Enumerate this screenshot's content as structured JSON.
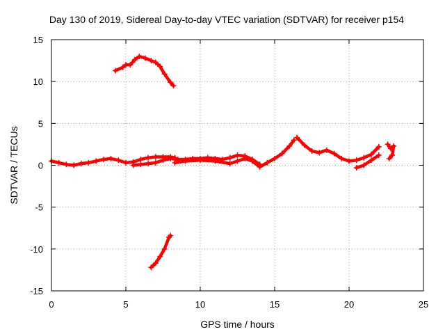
{
  "chart_data": {
    "type": "scatter",
    "title": "Day 130 of 2019, Sidereal Day-to-day VTEC variation (SDTVAR) for receiver p154",
    "xlabel": "GPS time / hours",
    "ylabel": "SDTVAR / TECUs",
    "xlim": [
      0,
      25
    ],
    "ylim": [
      -15,
      15
    ],
    "xticks": [
      0,
      5,
      10,
      15,
      20,
      25
    ],
    "yticks": [
      -15,
      -10,
      -5,
      0,
      5,
      10,
      15
    ],
    "grid": true,
    "marker_color": "#ff0000",
    "series": [
      {
        "name": "arc-main-1",
        "points": [
          [
            0.0,
            0.5
          ],
          [
            0.5,
            0.3
          ],
          [
            1.0,
            0.1
          ],
          [
            1.5,
            0.0
          ],
          [
            2.0,
            0.2
          ],
          [
            2.5,
            0.3
          ],
          [
            3.0,
            0.5
          ],
          [
            3.5,
            0.7
          ],
          [
            4.0,
            0.8
          ],
          [
            4.5,
            0.6
          ],
          [
            5.0,
            0.3
          ],
          [
            5.5,
            0.4
          ],
          [
            6.0,
            0.7
          ],
          [
            6.5,
            0.9
          ],
          [
            7.0,
            1.0
          ],
          [
            7.5,
            1.0
          ],
          [
            8.0,
            1.0
          ],
          [
            8.3,
            0.9
          ]
        ]
      },
      {
        "name": "arc-main-2",
        "points": [
          [
            5.5,
            0.0
          ],
          [
            6.0,
            0.1
          ],
          [
            6.5,
            0.2
          ],
          [
            7.0,
            0.3
          ],
          [
            7.5,
            0.6
          ],
          [
            8.0,
            0.8
          ],
          [
            8.5,
            0.7
          ],
          [
            9.0,
            0.7
          ],
          [
            9.5,
            0.8
          ],
          [
            10.0,
            0.8
          ],
          [
            10.5,
            0.9
          ],
          [
            11.0,
            0.8
          ],
          [
            11.5,
            0.7
          ],
          [
            12.0,
            0.9
          ],
          [
            12.5,
            1.2
          ],
          [
            13.0,
            1.1
          ],
          [
            13.5,
            0.7
          ],
          [
            14.0,
            0.1
          ]
        ]
      },
      {
        "name": "arc-main-3",
        "points": [
          [
            8.3,
            0.3
          ],
          [
            9.0,
            0.5
          ],
          [
            10.0,
            0.6
          ],
          [
            11.0,
            0.5
          ],
          [
            12.0,
            0.2
          ],
          [
            12.5,
            0.5
          ],
          [
            13.0,
            0.8
          ],
          [
            13.5,
            0.5
          ],
          [
            14.0,
            -0.2
          ],
          [
            14.5,
            0.3
          ],
          [
            15.0,
            0.8
          ],
          [
            15.5,
            1.4
          ],
          [
            16.0,
            2.3
          ],
          [
            16.3,
            3.0
          ]
        ]
      },
      {
        "name": "arc-main-4",
        "points": [
          [
            16.5,
            3.3
          ],
          [
            17.0,
            2.4
          ],
          [
            17.5,
            1.7
          ],
          [
            18.0,
            1.5
          ],
          [
            18.5,
            1.8
          ],
          [
            19.0,
            1.4
          ],
          [
            19.5,
            0.8
          ],
          [
            20.0,
            0.5
          ],
          [
            20.5,
            0.6
          ],
          [
            21.0,
            0.9
          ],
          [
            21.5,
            1.3
          ],
          [
            22.0,
            2.2
          ]
        ]
      },
      {
        "name": "arc-main-5",
        "points": [
          [
            20.5,
            -0.3
          ],
          [
            21.0,
            0.0
          ],
          [
            21.5,
            0.6
          ],
          [
            22.0,
            1.2
          ]
        ]
      },
      {
        "name": "arc-main-6",
        "points": [
          [
            22.6,
            2.5
          ],
          [
            22.8,
            2.0
          ],
          [
            23.0,
            2.3
          ],
          [
            22.9,
            1.2
          ],
          [
            22.7,
            0.8
          ]
        ]
      },
      {
        "name": "arc-high",
        "points": [
          [
            4.3,
            11.3
          ],
          [
            4.8,
            11.7
          ],
          [
            5.0,
            12.0
          ],
          [
            5.3,
            12.0
          ],
          [
            5.6,
            12.6
          ],
          [
            5.9,
            13.0
          ],
          [
            6.3,
            12.8
          ],
          [
            6.7,
            12.5
          ],
          [
            7.0,
            12.3
          ],
          [
            7.3,
            11.8
          ],
          [
            7.6,
            10.9
          ],
          [
            8.0,
            9.9
          ],
          [
            8.2,
            9.5
          ]
        ]
      },
      {
        "name": "arc-low",
        "points": [
          [
            6.7,
            -12.2
          ],
          [
            7.0,
            -11.7
          ],
          [
            7.3,
            -10.9
          ],
          [
            7.6,
            -10.0
          ],
          [
            7.9,
            -8.6
          ],
          [
            8.0,
            -8.4
          ]
        ]
      }
    ]
  }
}
